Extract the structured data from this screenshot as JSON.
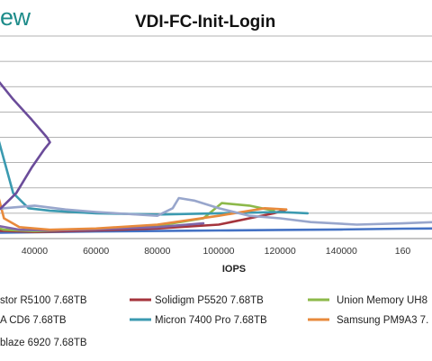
{
  "logo": {
    "text": "ew"
  },
  "chart_data": {
    "type": "line",
    "title": "VDI-FC-Init-Login",
    "xlabel": "IOPS",
    "ylabel": "",
    "xlim": [
      20000,
      170000
    ],
    "x_ticks": [
      "40000",
      "60000",
      "80000",
      "100000",
      "120000",
      "140000",
      "160"
    ],
    "grid": true,
    "legend_position": "bottom",
    "series": [
      {
        "name": "stor R5100 7.68TB",
        "color": "#4472c4",
        "points": [
          [
            20000,
            2.2
          ],
          [
            40000,
            2.5
          ],
          [
            60000,
            2.8
          ],
          [
            80000,
            3.0
          ],
          [
            100000,
            3.2
          ],
          [
            120000,
            3.4
          ],
          [
            140000,
            3.6
          ],
          [
            160000,
            3.9
          ],
          [
            170000,
            4.0
          ]
        ]
      },
      {
        "name": "Solidigm P5520 7.68TB",
        "color": "#a5343c",
        "points": [
          [
            20000,
            3.5
          ],
          [
            40000,
            2.6
          ],
          [
            60000,
            3.2
          ],
          [
            80000,
            4.0
          ],
          [
            100000,
            5.5
          ],
          [
            110000,
            8.0
          ],
          [
            118000,
            10.0
          ],
          [
            122000,
            11.5
          ]
        ]
      },
      {
        "name": "Union Memory UH8",
        "color": "#8db94a",
        "points": [
          [
            20000,
            7.0
          ],
          [
            30000,
            3.5
          ],
          [
            40000,
            2.9
          ],
          [
            60000,
            3.8
          ],
          [
            80000,
            5.0
          ],
          [
            95000,
            8.0
          ],
          [
            101000,
            14.0
          ],
          [
            110000,
            13.0
          ],
          [
            118000,
            11.0
          ]
        ]
      },
      {
        "name": "A CD6 7.68TB",
        "color": "#7f66a8",
        "points": [
          [
            20000,
            10.0
          ],
          [
            28000,
            5.0
          ],
          [
            35000,
            3.5
          ],
          [
            45000,
            3.2
          ],
          [
            60000,
            3.6
          ],
          [
            80000,
            4.5
          ],
          [
            95000,
            6.0
          ]
        ]
      },
      {
        "name": "Micron 7400 Pro 7.68TB",
        "color": "#3b9ab0",
        "points": [
          [
            20000,
            45.0
          ],
          [
            28000,
            40.0
          ],
          [
            33000,
            18.0
          ],
          [
            38000,
            12.0
          ],
          [
            45000,
            11.0
          ],
          [
            60000,
            10.0
          ],
          [
            80000,
            9.5
          ],
          [
            100000,
            10.0
          ],
          [
            120000,
            10.5
          ],
          [
            129000,
            10.0
          ]
        ]
      },
      {
        "name": "Samsung PM9A3 7.",
        "color": "#e88a3c",
        "points": [
          [
            20000,
            30.0
          ],
          [
            27000,
            22.0
          ],
          [
            30000,
            8.0
          ],
          [
            35000,
            4.5
          ],
          [
            45000,
            3.5
          ],
          [
            60000,
            4.0
          ],
          [
            80000,
            5.5
          ],
          [
            100000,
            9.0
          ],
          [
            115000,
            12.0
          ],
          [
            122000,
            11.5
          ]
        ]
      },
      {
        "name": "blaze 6920 7.68TB",
        "color": "#98a6cc",
        "points": [
          [
            20000,
            10.0
          ],
          [
            30000,
            12.0
          ],
          [
            40000,
            13.0
          ],
          [
            50000,
            11.5
          ],
          [
            60000,
            10.5
          ],
          [
            80000,
            9.0
          ],
          [
            85000,
            12.0
          ],
          [
            87000,
            16.0
          ],
          [
            92000,
            15.0
          ],
          [
            100000,
            12.0
          ],
          [
            110000,
            9.0
          ],
          [
            120000,
            8.0
          ],
          [
            130000,
            6.5
          ],
          [
            145000,
            5.5
          ],
          [
            160000,
            6.0
          ],
          [
            170000,
            6.5
          ]
        ]
      },
      {
        "name": "",
        "color": "#6b4c9a",
        "points": [
          [
            20000,
            72.0
          ],
          [
            27000,
            64.0
          ],
          [
            33000,
            55.0
          ],
          [
            39000,
            47.0
          ],
          [
            44000,
            40.0
          ],
          [
            45000,
            38.0
          ],
          [
            43000,
            35.0
          ],
          [
            39000,
            28.0
          ],
          [
            34000,
            18.0
          ],
          [
            29000,
            12.0
          ],
          [
            24000,
            9.0
          ],
          [
            20000,
            8.0
          ]
        ]
      }
    ],
    "ylim": [
      0,
      80
    ]
  }
}
